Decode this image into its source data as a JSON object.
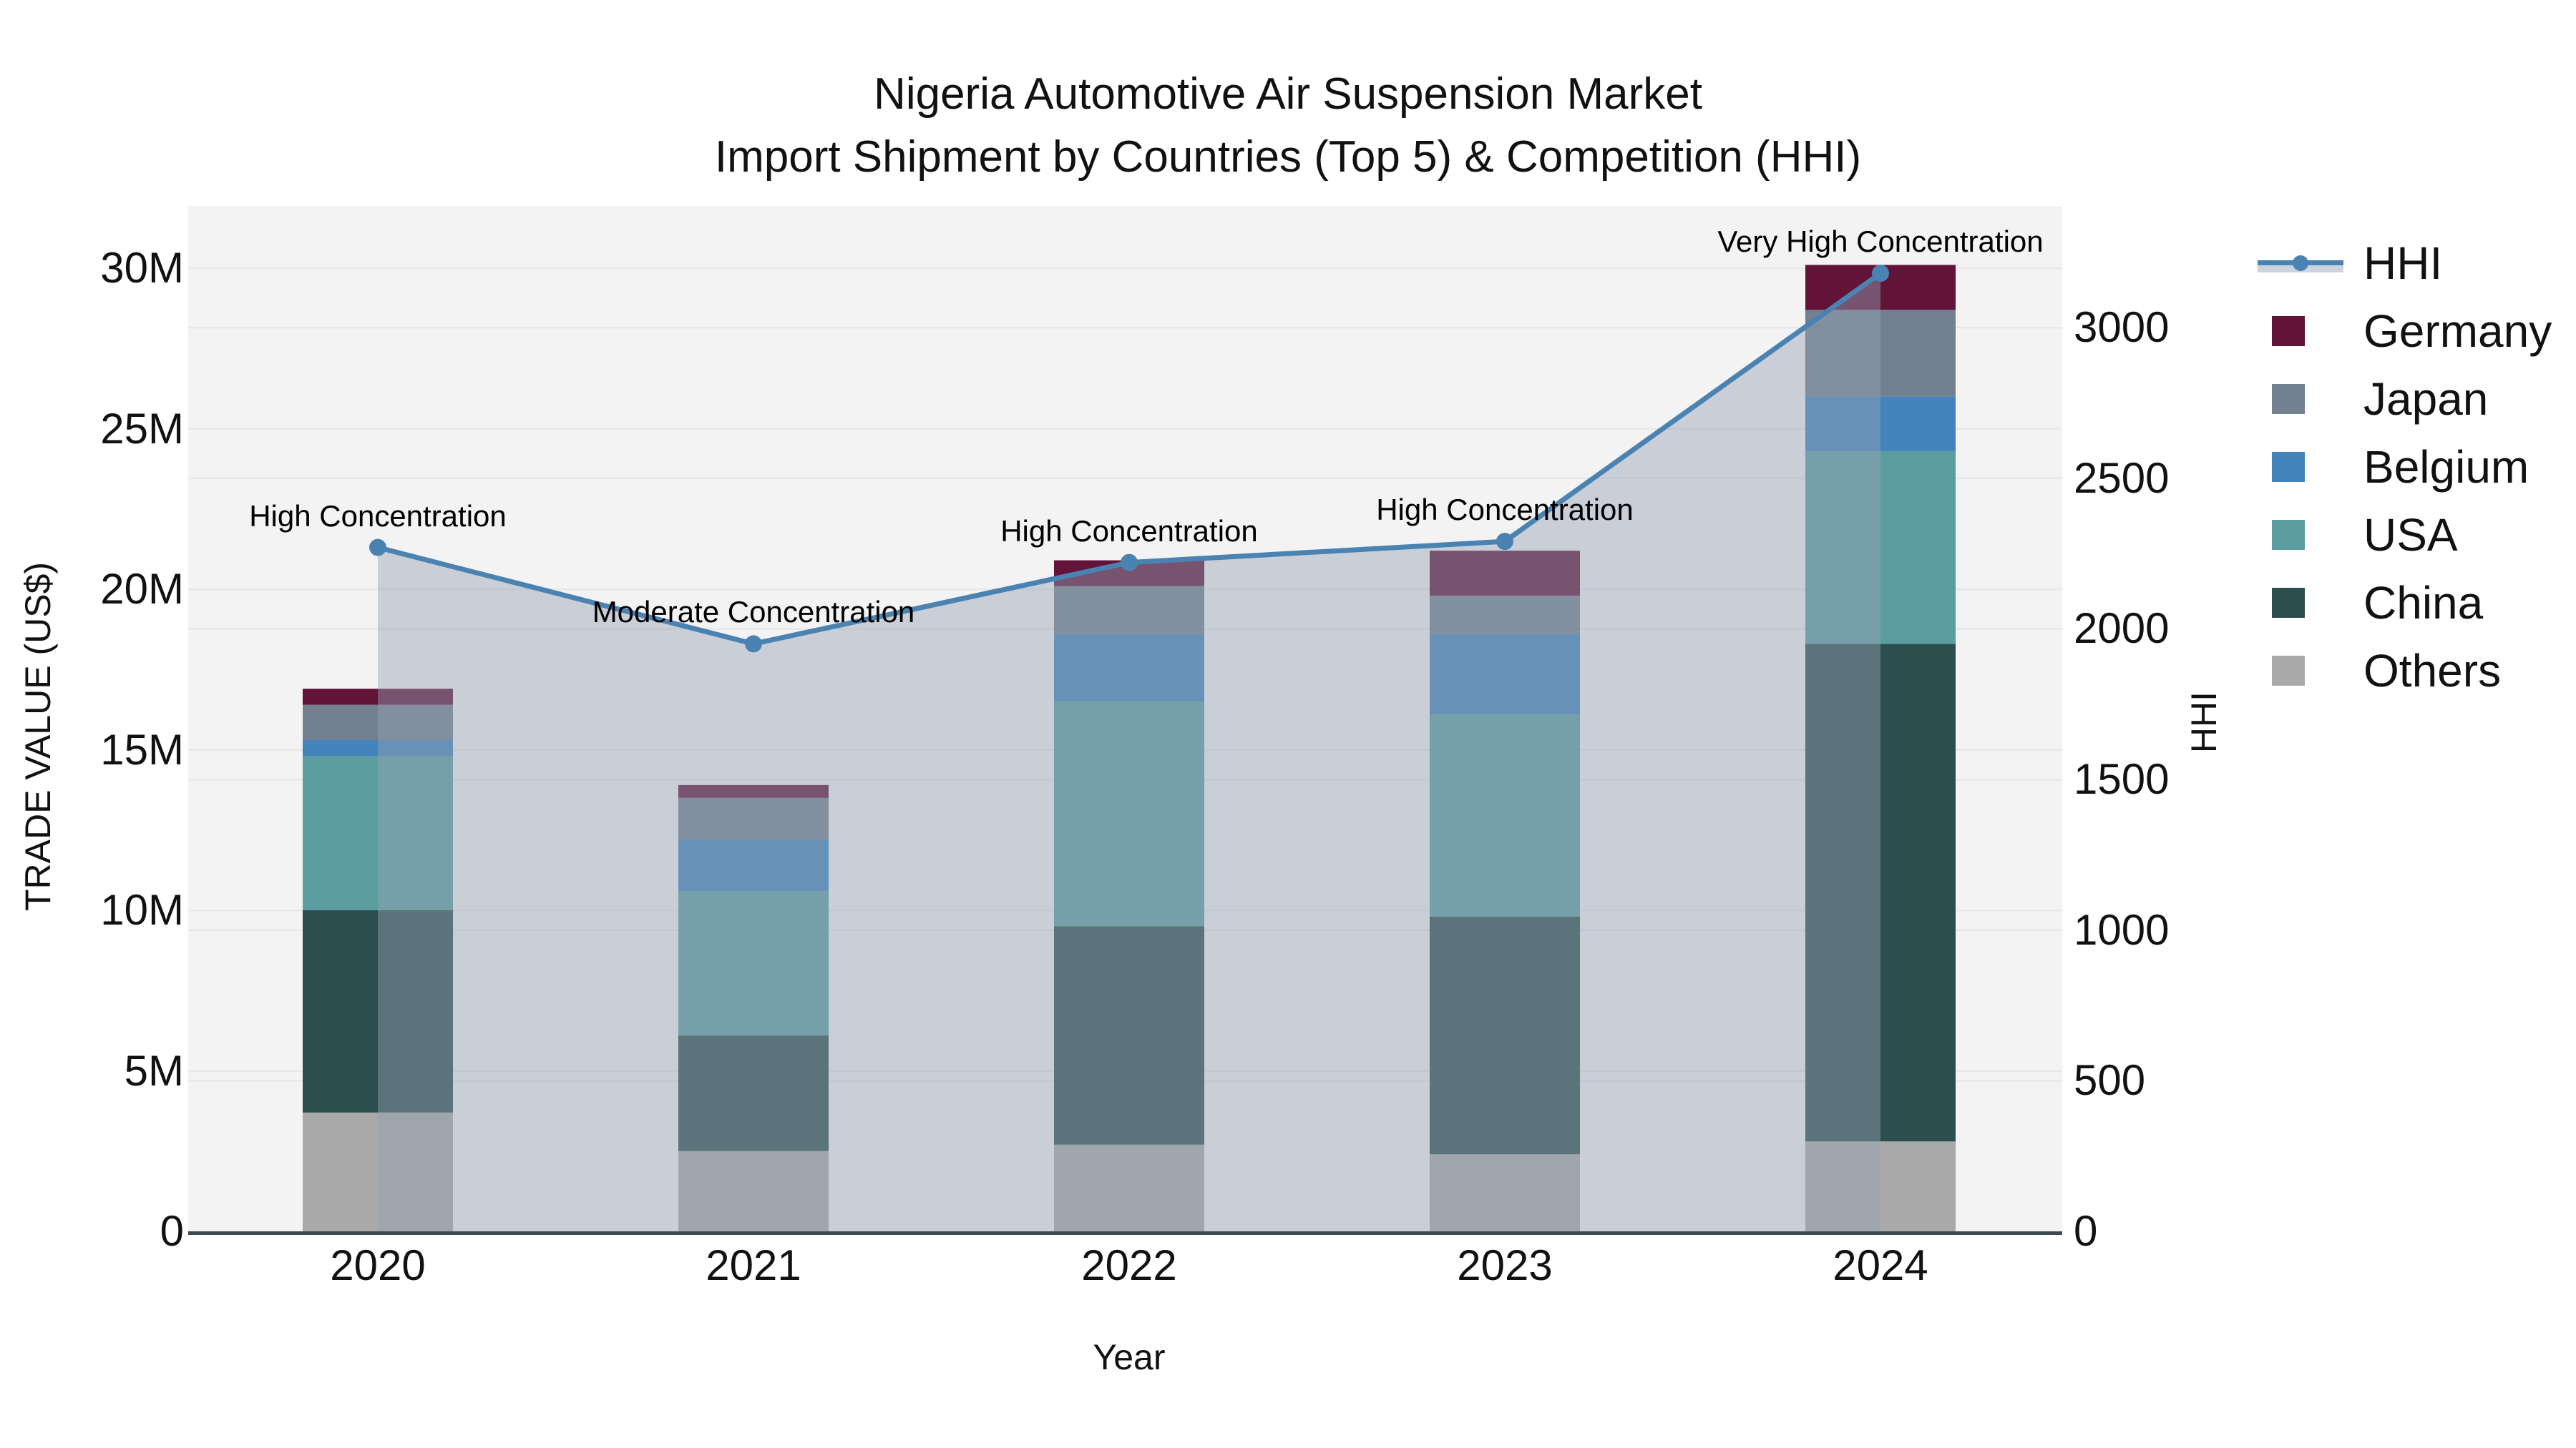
{
  "title": {
    "line1": "Nigeria Automotive Air Suspension Market",
    "line2": "Import Shipment by Countries (Top 5) & Competition (HHI)"
  },
  "axes": {
    "x": {
      "title": "Year",
      "ticks": [
        "2020",
        "2021",
        "2022",
        "2023",
        "2024"
      ]
    },
    "y_left": {
      "title": "TRADE VALUE (US$)",
      "ticks": [
        "0",
        "5M",
        "10M",
        "15M",
        "20M",
        "25M",
        "30M"
      ],
      "range_millions": [
        0,
        30
      ]
    },
    "y_right": {
      "title": "HHI",
      "ticks": [
        "0",
        "500",
        "1000",
        "1500",
        "2000",
        "2500",
        "3000"
      ],
      "range": [
        0,
        3000
      ]
    }
  },
  "legend": {
    "items": [
      {
        "label": "HHI",
        "type": "line"
      },
      {
        "label": "Germany",
        "type": "swatch"
      },
      {
        "label": "Japan",
        "type": "swatch"
      },
      {
        "label": "Belgium",
        "type": "swatch"
      },
      {
        "label": "USA",
        "type": "swatch"
      },
      {
        "label": "China",
        "type": "swatch"
      },
      {
        "label": "Others",
        "type": "swatch"
      }
    ]
  },
  "chart_data": {
    "type": "combo-stacked-bar-line",
    "categories": [
      "2020",
      "2021",
      "2022",
      "2023",
      "2024"
    ],
    "bar_unit": "million US$",
    "series": [
      {
        "name": "Others",
        "values": [
          3.7,
          2.5,
          2.7,
          2.4,
          2.8
        ]
      },
      {
        "name": "China",
        "values": [
          6.3,
          3.6,
          6.8,
          7.4,
          15.5
        ]
      },
      {
        "name": "USA",
        "values": [
          4.8,
          4.5,
          7.0,
          6.3,
          6.0
        ]
      },
      {
        "name": "Belgium",
        "values": [
          0.5,
          1.6,
          2.1,
          2.5,
          1.7
        ]
      },
      {
        "name": "Japan",
        "values": [
          1.1,
          1.3,
          1.5,
          1.2,
          2.7
        ]
      },
      {
        "name": "Germany",
        "values": [
          0.5,
          0.4,
          0.8,
          1.4,
          1.4
        ]
      }
    ],
    "stacked_totals_millions": [
      16.9,
      13.9,
      20.9,
      21.2,
      30.1
    ],
    "line_series": {
      "name": "HHI",
      "axis": "right",
      "values": [
        2270,
        1950,
        2220,
        2290,
        3180
      ]
    },
    "annotations": [
      "High Concentration",
      "Moderate Concentration",
      "High Concentration",
      "High Concentration",
      "Very High Concentration"
    ],
    "ylim_left_millions": [
      0,
      30
    ],
    "ylim_right": [
      0,
      3000
    ],
    "grid": "on",
    "legend_position": "right"
  },
  "colors": {
    "Germany": "#611338",
    "Japan": "#72808f",
    "Belgium": "#4483bb",
    "USA": "#5b9da0",
    "China": "#2d4e4e",
    "Others": "#a8a9a8",
    "hhi_line": "#4a82b2",
    "hhi_band": "#ccd3dc",
    "hhi_area": "rgba(148,162,180,0.45)",
    "plot_bg": "#f4f3f4",
    "grid": "#e8e7e9",
    "axis_line": "#3d4a52",
    "text": "#111111"
  }
}
